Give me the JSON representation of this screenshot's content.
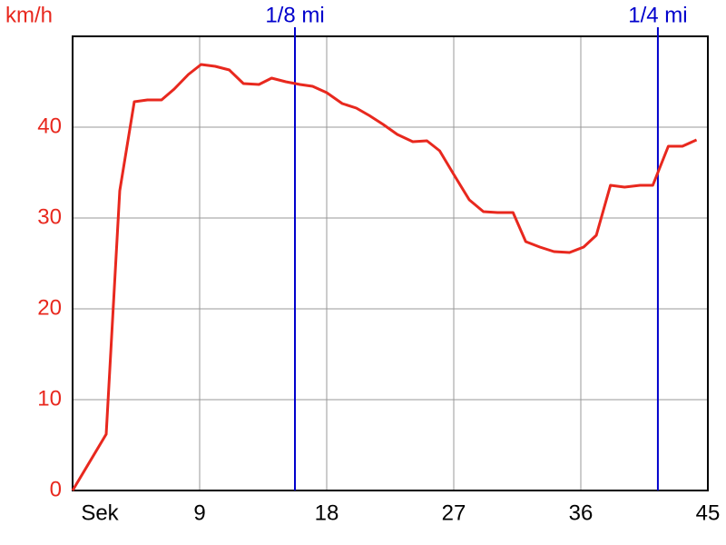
{
  "chart_data": {
    "type": "line",
    "ylabel": "km/h",
    "x": [
      0,
      2.38,
      3.34,
      4.37,
      5.3,
      6.3,
      7.2,
      8.2,
      9.1,
      10.1,
      11.1,
      12.1,
      13.2,
      14.1,
      15.1,
      16.1,
      17.0,
      18.0,
      19.1,
      20.1,
      21.0,
      22.0,
      23.0,
      24.1,
      25.1,
      26.0,
      27.0,
      28.1,
      29.1,
      30.1,
      31.2,
      32.1,
      33.1,
      34.1,
      35.2,
      36.2,
      37.1,
      38.1,
      39.1,
      40.2,
      41.1,
      42.2,
      43.2,
      44.2
    ],
    "values": [
      0,
      6.2,
      33,
      42.8,
      43,
      43,
      44.2,
      45.8,
      46.9,
      46.7,
      46.3,
      44.8,
      44.7,
      45.4,
      45,
      44.7,
      44.5,
      43.8,
      42.6,
      42.1,
      41.3,
      40.3,
      39.2,
      38.4,
      38.5,
      37.4,
      34.8,
      32,
      30.7,
      30.6,
      30.6,
      27.4,
      26.8,
      26.3,
      26.2,
      26.8,
      28.1,
      33.6,
      33.4,
      33.6,
      33.6,
      37.9,
      37.9,
      38.6
    ],
    "color": "#e8281e",
    "xlim": [
      0,
      45
    ],
    "ylim": [
      0,
      50
    ],
    "xticks": [
      {
        "value": 0,
        "label": "Sek"
      },
      9,
      18,
      27,
      36,
      45
    ],
    "yticks": [
      0,
      10,
      20,
      30,
      40
    ],
    "grid": true,
    "markers": [
      {
        "x": 15.75,
        "label": "1/8 mi"
      },
      {
        "x": 41.46,
        "label": "1/4 mi"
      }
    ],
    "marker_color": "#0000cc"
  }
}
